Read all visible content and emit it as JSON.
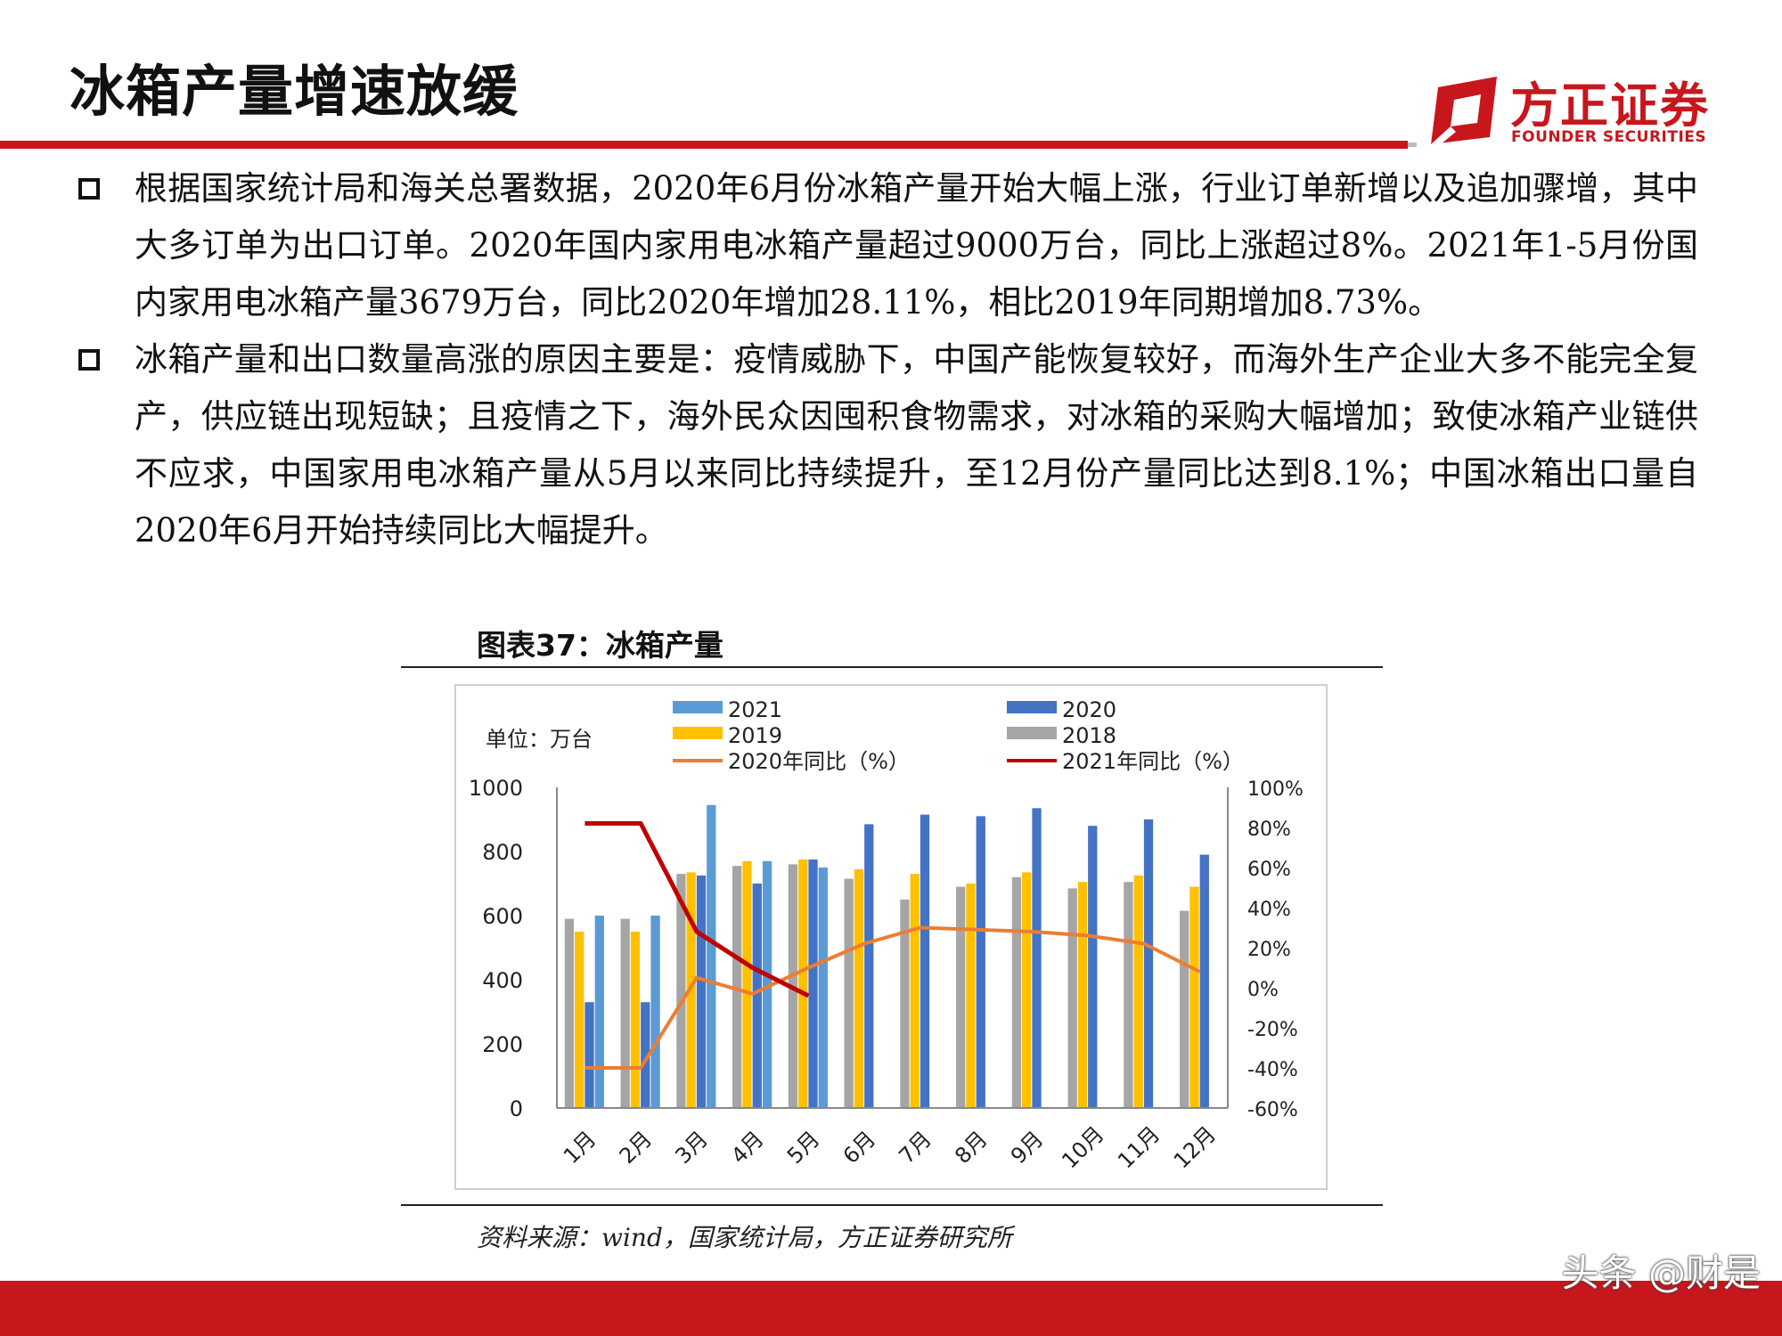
{
  "header": {
    "title": "冰箱产量增速放缓",
    "logo_cn": "方正证券",
    "logo_en": "FOUNDER SECURITIES"
  },
  "bullets": [
    "根据国家统计局和海关总署数据，2020年6月份冰箱产量开始大幅上涨，行业订单新增以及追加骤增，其中大多订单为出口订单。2020年国内家用电冰箱产量超过9000万台，同比上涨超过8%。2021年1-5月份国内家用电冰箱产量3679万台，同比2020年增加28.11%，相比2019年同期增加8.73%。",
    "冰箱产量和出口数量高涨的原因主要是：疫情威胁下，中国产能恢复较好，而海外生产企业大多不能完全复产，供应链出现短缺；且疫情之下，海外民众因囤积食物需求，对冰箱的采购大幅增加；致使冰箱产业链供不应求，中国家用电冰箱产量从5月以来同比持续提升，至12月份产量同比达到8.1%；中国冰箱出口量自2020年6月开始持续同比大幅提升。"
  ],
  "figure": {
    "title": "图表37：冰箱产量",
    "source": "资料来源：wind，国家统计局，方正证券研究所"
  },
  "watermark": "头条 @财是",
  "colors": {
    "accent_red": "#c8161d",
    "series_2021": "#5b9bd5",
    "series_2020": "#4472c4",
    "series_2019": "#ffc000",
    "series_2018": "#a5a5a5",
    "line_2020_yoy": "#ed7d31",
    "line_2021_yoy": "#c00000"
  },
  "chart_data": {
    "type": "bar",
    "unit_label": "单位：万台",
    "categories": [
      "1月",
      "2月",
      "3月",
      "4月",
      "5月",
      "6月",
      "7月",
      "8月",
      "9月",
      "10月",
      "11月",
      "12月"
    ],
    "ylim": [
      0,
      1000
    ],
    "y_ticks": [
      0,
      200,
      400,
      600,
      800,
      1000
    ],
    "y2lim": [
      -60,
      100
    ],
    "y2_ticks": [
      "-60%",
      "-40%",
      "-20%",
      "0%",
      "20%",
      "40%",
      "60%",
      "80%",
      "100%"
    ],
    "y2_values": [
      -60,
      -40,
      -20,
      0,
      20,
      40,
      60,
      80,
      100
    ],
    "series": [
      {
        "name": "2018",
        "type": "bar",
        "values": [
          590,
          590,
          730,
          755,
          760,
          715,
          650,
          690,
          720,
          685,
          705,
          615
        ]
      },
      {
        "name": "2019",
        "type": "bar",
        "values": [
          550,
          550,
          735,
          770,
          775,
          745,
          730,
          700,
          735,
          705,
          725,
          690
        ]
      },
      {
        "name": "2020",
        "type": "bar",
        "values": [
          330,
          330,
          725,
          700,
          775,
          885,
          915,
          910,
          935,
          880,
          900,
          790
        ]
      },
      {
        "name": "2021",
        "type": "bar",
        "values": [
          600,
          600,
          945,
          770,
          750,
          null,
          null,
          null,
          null,
          null,
          null,
          null
        ]
      },
      {
        "name": "2020年同比（%）",
        "type": "line",
        "axis": "right",
        "values": [
          -40,
          -40,
          5,
          -3,
          10,
          22,
          30,
          29,
          28,
          26,
          22,
          8
        ]
      },
      {
        "name": "2021年同比（%）",
        "type": "line",
        "axis": "right",
        "values": [
          82,
          82,
          28,
          10,
          -4,
          null,
          null,
          null,
          null,
          null,
          null,
          null
        ]
      }
    ],
    "legend_order": [
      "2021",
      "2020",
      "2019",
      "2018",
      "2020年同比（%）",
      "2021年同比（%）"
    ],
    "legend_placement": "top",
    "grid": false
  }
}
